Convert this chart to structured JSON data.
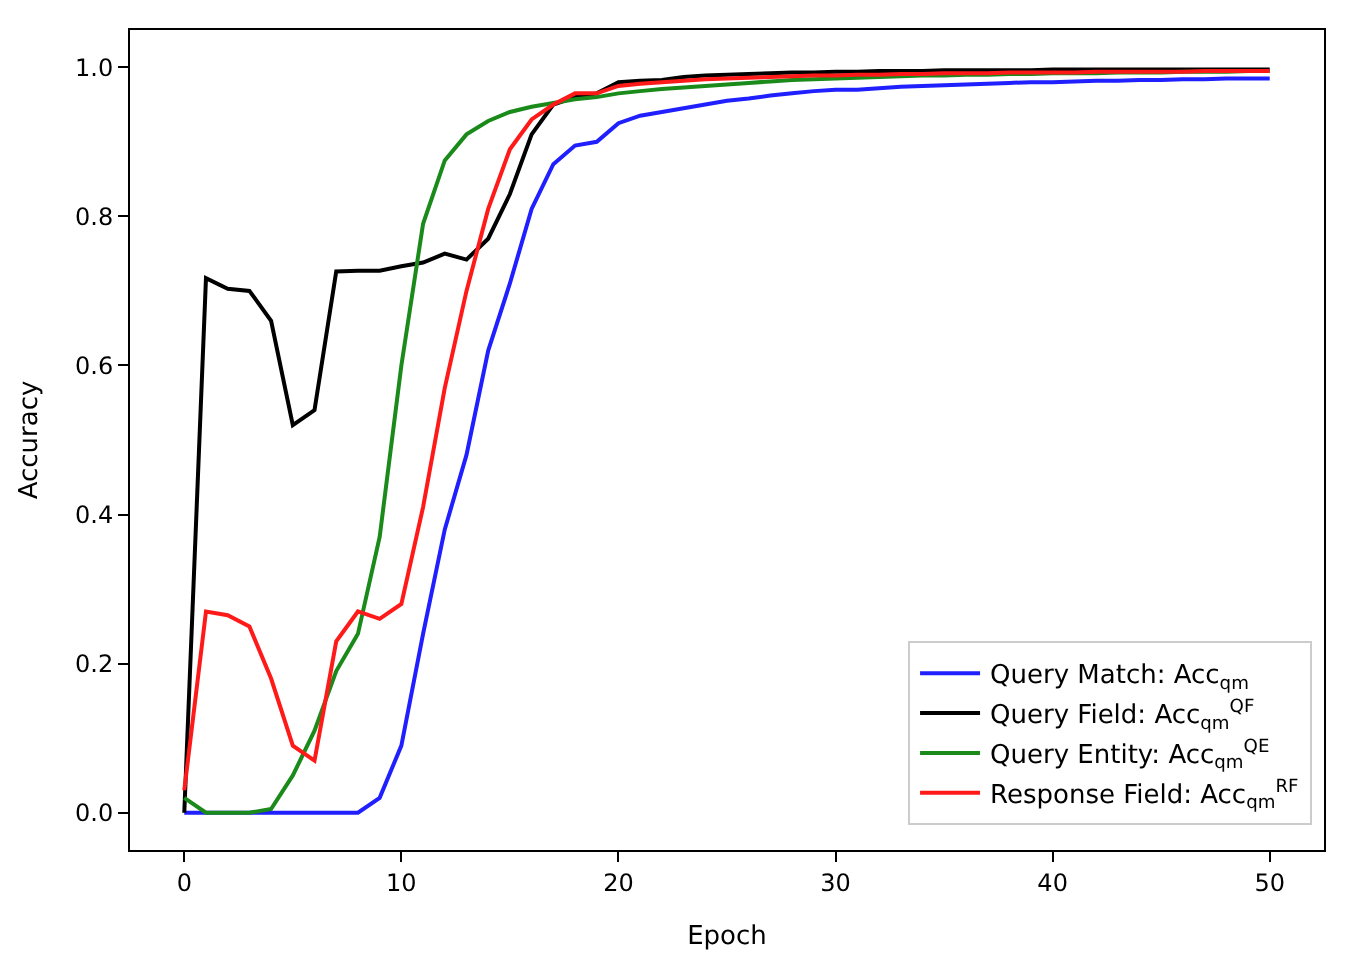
{
  "chart_data": {
    "type": "line",
    "xlabel": "Epoch",
    "ylabel": "Accuracy",
    "x": [
      0,
      1,
      2,
      3,
      4,
      5,
      6,
      7,
      8,
      9,
      10,
      11,
      12,
      13,
      14,
      15,
      16,
      17,
      18,
      19,
      20,
      21,
      22,
      23,
      24,
      25,
      26,
      27,
      28,
      29,
      30,
      31,
      32,
      33,
      34,
      35,
      36,
      37,
      38,
      39,
      40,
      41,
      42,
      43,
      44,
      45,
      46,
      47,
      48,
      49,
      50
    ],
    "series": [
      {
        "name": "Query Match: Acc$_{qm}$",
        "color": "#1f1fff",
        "values": [
          0,
          0,
          0,
          0,
          0,
          0,
          0,
          0,
          0,
          0.02,
          0.09,
          0.24,
          0.38,
          0.48,
          0.62,
          0.71,
          0.81,
          0.87,
          0.895,
          0.9,
          0.925,
          0.935,
          0.94,
          0.945,
          0.95,
          0.955,
          0.958,
          0.962,
          0.965,
          0.968,
          0.97,
          0.97,
          0.972,
          0.974,
          0.975,
          0.976,
          0.977,
          0.978,
          0.979,
          0.98,
          0.98,
          0.981,
          0.982,
          0.982,
          0.983,
          0.983,
          0.984,
          0.984,
          0.985,
          0.985,
          0.985
        ]
      },
      {
        "name": "Query Field: Acc$_{qm}$$^{QF}$",
        "color": "#000000",
        "values": [
          0,
          0.717,
          0.703,
          0.7,
          0.66,
          0.52,
          0.54,
          0.726,
          0.727,
          0.727,
          0.733,
          0.738,
          0.75,
          0.742,
          0.77,
          0.83,
          0.91,
          0.95,
          0.96,
          0.965,
          0.98,
          0.982,
          0.983,
          0.987,
          0.989,
          0.99,
          0.991,
          0.992,
          0.993,
          0.993,
          0.994,
          0.994,
          0.995,
          0.995,
          0.995,
          0.996,
          0.996,
          0.996,
          0.996,
          0.996,
          0.997,
          0.997,
          0.997,
          0.997,
          0.997,
          0.997,
          0.997,
          0.997,
          0.997,
          0.997,
          0.997
        ]
      },
      {
        "name": "Query Entity: Acc$_{qm}$$^{QE}$",
        "color": "#1a8a1a",
        "values": [
          0.02,
          0,
          0,
          0,
          0.005,
          0.05,
          0.11,
          0.19,
          0.24,
          0.37,
          0.6,
          0.79,
          0.875,
          0.91,
          0.928,
          0.94,
          0.947,
          0.952,
          0.957,
          0.96,
          0.965,
          0.968,
          0.971,
          0.973,
          0.975,
          0.977,
          0.979,
          0.981,
          0.983,
          0.984,
          0.985,
          0.986,
          0.987,
          0.988,
          0.989,
          0.989,
          0.99,
          0.99,
          0.991,
          0.991,
          0.992,
          0.992,
          0.992,
          0.993,
          0.993,
          0.993,
          0.994,
          0.994,
          0.994,
          0.995,
          0.995
        ]
      },
      {
        "name": "Response Field: Acc$_{qm}$$^{RF}$",
        "color": "#ff1a1a",
        "values": [
          0.03,
          0.27,
          0.265,
          0.25,
          0.18,
          0.09,
          0.07,
          0.23,
          0.27,
          0.26,
          0.28,
          0.41,
          0.57,
          0.7,
          0.81,
          0.89,
          0.93,
          0.95,
          0.965,
          0.965,
          0.975,
          0.978,
          0.98,
          0.982,
          0.984,
          0.985,
          0.986,
          0.987,
          0.988,
          0.989,
          0.989,
          0.99,
          0.99,
          0.991,
          0.991,
          0.992,
          0.992,
          0.992,
          0.993,
          0.993,
          0.993,
          0.993,
          0.994,
          0.994,
          0.994,
          0.994,
          0.994,
          0.995,
          0.995,
          0.995,
          0.995
        ]
      }
    ],
    "xlim": [
      -2.5,
      52.5
    ],
    "xticks": [
      0,
      10,
      20,
      30,
      40,
      50
    ],
    "ylim": [
      -0.05,
      1.05
    ],
    "yticks": [
      {
        "value": 0,
        "label": "0.0"
      },
      {
        "value": 0.2,
        "label": "0.2"
      },
      {
        "value": 0.4,
        "label": "0.4"
      },
      {
        "value": 0.6,
        "label": "0.6"
      },
      {
        "value": 0.8,
        "label": "0.8"
      },
      {
        "value": 1.0,
        "label": "1.0"
      }
    ],
    "legend": "bottom right",
    "marker": "none",
    "line_style": "solid"
  }
}
